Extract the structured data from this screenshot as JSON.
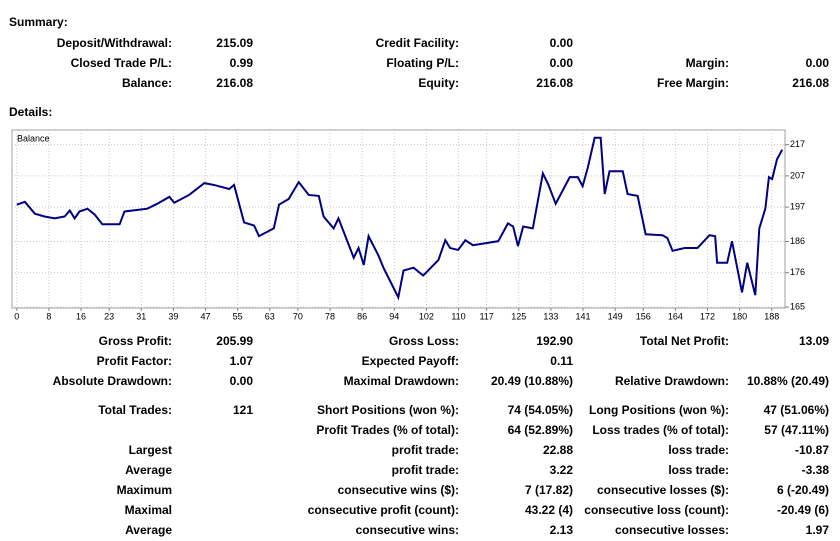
{
  "summary": {
    "heading": "Summary:",
    "rows": [
      [
        "Deposit/Withdrawal:",
        "215.09",
        "Credit Facility:",
        "0.00",
        null,
        null
      ],
      [
        "Closed Trade P/L:",
        "0.99",
        "Floating P/L:",
        "0.00",
        "Margin:",
        "0.00"
      ],
      [
        "Balance:",
        "216.08",
        "Equity:",
        "216.08",
        "Free Margin:",
        "216.08"
      ]
    ]
  },
  "details": {
    "heading": "Details:",
    "rows": [
      [
        "Gross Profit:",
        "205.99",
        "Gross Loss:",
        "192.90",
        "Total Net Profit:",
        "13.09"
      ],
      [
        "Profit Factor:",
        "1.07",
        "Expected Payoff:",
        "0.11",
        null,
        null
      ],
      [
        "Absolute Drawdown:",
        "0.00",
        "Maximal Drawdown:",
        "20.49 (10.88%)",
        "Relative Drawdown:",
        "10.88% (20.49)"
      ],
      [
        "Total Trades:",
        "121",
        "Short Positions (won %):",
        "74 (54.05%)",
        "Long Positions (won %):",
        "47 (51.06%)"
      ],
      [
        null,
        null,
        "Profit Trades (% of total):",
        "64 (52.89%)",
        "Loss trades (% of total):",
        "57 (47.11%)"
      ],
      [
        "Largest",
        null,
        "profit trade:",
        "22.88",
        "loss trade:",
        "-10.87"
      ],
      [
        "Average",
        null,
        "profit trade:",
        "3.22",
        "loss trade:",
        "-3.38"
      ],
      [
        "Maximum",
        null,
        "consecutive wins ($):",
        "7 (17.82)",
        "consecutive losses ($):",
        "6 (-20.49)"
      ],
      [
        "Maximal",
        null,
        "consecutive profit (count):",
        "43.22 (4)",
        "consecutive loss (count):",
        "-20.49 (6)"
      ],
      [
        "Average",
        null,
        "consecutive wins:",
        "2.13",
        "consecutive losses:",
        "1.97"
      ]
    ]
  },
  "chart_data": {
    "type": "line",
    "grid": true,
    "x": [
      0.0,
      2.0,
      4.5,
      6.9,
      9.4,
      11.9,
      13.2,
      14.4,
      15.6,
      17.6,
      19.4,
      21.3,
      25.6,
      26.8,
      32.5,
      35.0,
      38.0,
      39.2,
      42.9,
      46.7,
      49.1,
      52.9,
      54.1,
      56.6,
      59.1,
      60.3,
      64.0,
      65.3,
      67.7,
      70.2,
      72.7,
      75.2,
      76.4,
      78.9,
      80.1,
      83.9,
      85.1,
      86.4,
      87.6,
      90.1,
      91.3,
      95.0,
      96.3,
      98.8,
      101.2,
      105.0,
      106.7,
      107.9,
      109.9,
      111.7,
      113.6,
      119.9,
      122.3,
      123.6,
      124.8,
      126.1,
      128.5,
      131.0,
      132.3,
      134.2,
      137.7,
      139.7,
      140.9,
      142.2,
      143.9,
      145.4,
      146.4,
      147.6,
      150.9,
      152.1,
      154.6,
      156.6,
      160.8,
      162.0,
      163.3,
      166.3,
      169.5,
      172.5,
      173.9,
      174.4,
      176.9,
      178.1,
      180.6,
      181.9,
      183.9,
      184.9,
      186.4,
      187.3,
      188.1,
      189.3,
      190.6
    ],
    "series": [
      {
        "name": "Balance",
        "color": "#000080",
        "values": [
          197.8,
          198.7,
          194.9,
          194.0,
          193.4,
          194.0,
          195.9,
          193.4,
          195.6,
          196.5,
          194.6,
          191.5,
          191.5,
          195.6,
          196.5,
          198.1,
          200.3,
          198.4,
          200.9,
          204.7,
          204.1,
          202.8,
          204.1,
          192.1,
          191.1,
          187.7,
          190.2,
          197.8,
          199.6,
          205.0,
          200.9,
          200.6,
          194.0,
          190.2,
          193.4,
          180.8,
          183.9,
          178.5,
          187.7,
          181.4,
          177.6,
          168.1,
          176.7,
          177.6,
          175.1,
          180.1,
          186.4,
          183.9,
          183.3,
          186.4,
          184.8,
          186.1,
          191.8,
          190.8,
          184.5,
          190.8,
          190.2,
          207.8,
          204.4,
          198.1,
          206.6,
          206.6,
          203.7,
          209.7,
          219.2,
          219.2,
          201.2,
          208.5,
          208.5,
          201.2,
          200.6,
          188.3,
          188.0,
          187.1,
          183.0,
          183.9,
          183.9,
          188.0,
          187.7,
          179.2,
          179.2,
          186.1,
          169.7,
          179.2,
          168.8,
          190.2,
          196.5,
          206.6,
          206.0,
          212.3,
          215.4
        ]
      }
    ],
    "xlim": [
      -1.2,
      191.3
    ],
    "ylim": [
      164.7,
      221.7
    ],
    "xticks": [
      0,
      8,
      16,
      23,
      31,
      39,
      47,
      55,
      63,
      70,
      78,
      86,
      94,
      102,
      110,
      117,
      125,
      133,
      141,
      149,
      156,
      164,
      172,
      180,
      188
    ],
    "yticks": [
      217,
      207,
      197,
      186,
      176,
      165
    ]
  }
}
